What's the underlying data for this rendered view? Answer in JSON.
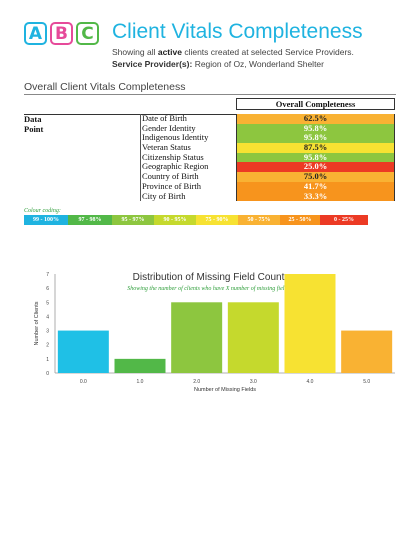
{
  "logo": {
    "letters": [
      "A",
      "B",
      "C"
    ],
    "colors": [
      "#1fb3e0",
      "#e64a9a",
      "#52b848"
    ]
  },
  "header": {
    "title": "Client Vitals Completeness",
    "sub1_pre": "Showing all ",
    "sub1_bold": "active",
    "sub1_post": " clients created at selected Service Providers.",
    "sub2_label": "Service Provider(s):",
    "sub2_value": " Region of Oz, Wonderland Shelter"
  },
  "section_title": "Overall Client Vitals Completeness",
  "table": {
    "col_header": "Overall Completeness",
    "data_point_label": "Data Point",
    "rows": [
      {
        "name": "Date of Birth",
        "value": "62.5%",
        "color": "#f9b233",
        "dark": true
      },
      {
        "name": "Gender Identity",
        "value": "95.8%",
        "color": "#8dc63f",
        "dark": false
      },
      {
        "name": "Indigenous Identity",
        "value": "95.8%",
        "color": "#8dc63f",
        "dark": false
      },
      {
        "name": "Veteran Status",
        "value": "87.5%",
        "color": "#f7e232",
        "dark": true
      },
      {
        "name": "Citizenship Status",
        "value": "95.8%",
        "color": "#8dc63f",
        "dark": false
      },
      {
        "name": "Geographic Region",
        "value": "25.0%",
        "color": "#ec3a24",
        "dark": false
      },
      {
        "name": "Country of Birth",
        "value": "75.0%",
        "color": "#f9b233",
        "dark": true
      },
      {
        "name": "Province of Birth",
        "value": "41.7%",
        "color": "#f7941d",
        "dark": false
      },
      {
        "name": "City of Birth",
        "value": "33.3%",
        "color": "#f7941d",
        "dark": false
      }
    ]
  },
  "colour_coding": {
    "label": "Colour coding:",
    "items": [
      {
        "text": "99 - 100%",
        "color": "#1fb3e0"
      },
      {
        "text": "97 - 98%",
        "color": "#52b848"
      },
      {
        "text": "95 - 97%",
        "color": "#8dc63f"
      },
      {
        "text": "90 - 95%",
        "color": "#c5d92d"
      },
      {
        "text": "75 - 90%",
        "color": "#f7e232"
      },
      {
        "text": "50 - 75%",
        "color": "#f9b233"
      },
      {
        "text": "25 - 50%",
        "color": "#f7941d"
      },
      {
        "text": "0 - 25%",
        "color": "#ec3a24"
      }
    ]
  },
  "chart_data": {
    "type": "bar",
    "title": "Distribution of Missing Field Count",
    "subtitle": "Showing the number of clients who have X number of missing fields",
    "xlabel": "Number of Missing Fields",
    "ylabel": "Number of Clients",
    "categories": [
      "0.0",
      "1.0",
      "2.0",
      "3.0",
      "4.0",
      "5.0"
    ],
    "values": [
      3,
      1,
      5,
      5,
      7,
      3
    ],
    "colors": [
      "#1fc0e6",
      "#52b848",
      "#8dc63f",
      "#c5d92d",
      "#f7e232",
      "#f9b233"
    ],
    "ylim": [
      0,
      7
    ],
    "yticks": [
      "0",
      "1",
      "2",
      "3",
      "4",
      "5",
      "6",
      "7"
    ]
  }
}
